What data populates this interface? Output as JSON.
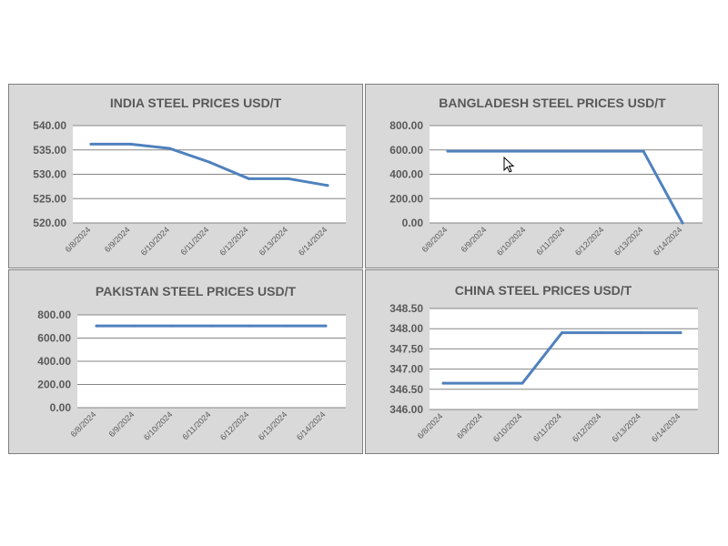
{
  "chart_data": [
    {
      "type": "line",
      "title": "INDIA STEEL PRICES USD/T",
      "categories": [
        "6/8/2024",
        "6/9/2024",
        "6/10/2024",
        "6/11/2024",
        "6/12/2024",
        "6/13/2024",
        "6/14/2024"
      ],
      "series": [
        {
          "values": [
            536.2,
            536.2,
            535.3,
            532.5,
            529.1,
            529.1,
            527.7
          ]
        }
      ],
      "ylim": [
        520,
        540
      ],
      "yticks": [
        "520.00",
        "525.00",
        "530.00",
        "535.00",
        "540.00"
      ],
      "grid": true,
      "line_color": "#4f81bd"
    },
    {
      "type": "line",
      "title": "BANGLADESH STEEL PRICES USD/T",
      "categories": [
        "6/8/2024",
        "6/9/2024",
        "6/10/2024",
        "6/11/2024",
        "6/12/2024",
        "6/13/2024",
        "6/14/2024"
      ],
      "series": [
        {
          "values": [
            590,
            590,
            590,
            590,
            590,
            590,
            0
          ]
        }
      ],
      "ylim": [
        0,
        800
      ],
      "yticks": [
        "0.00",
        "200.00",
        "400.00",
        "600.00",
        "800.00"
      ],
      "grid": true,
      "line_color": "#4f81bd"
    },
    {
      "type": "line",
      "title": "PAKISTAN STEEL PRICES USD/T",
      "categories": [
        "6/8/2024",
        "6/9/2024",
        "6/10/2024",
        "6/11/2024",
        "6/12/2024",
        "6/13/2024",
        "6/14/2024"
      ],
      "series": [
        {
          "values": [
            705,
            705,
            705,
            705,
            705,
            705,
            705
          ]
        }
      ],
      "ylim": [
        0,
        800
      ],
      "yticks": [
        "0.00",
        "200.00",
        "400.00",
        "600.00",
        "800.00"
      ],
      "grid": true,
      "line_color": "#4f81bd"
    },
    {
      "type": "line",
      "title": "CHINA STEEL PRICES USD/T",
      "categories": [
        "6/8/2024",
        "6/9/2024",
        "6/10/2024",
        "6/11/2024",
        "6/12/2024",
        "6/13/2024",
        "6/14/2024"
      ],
      "series": [
        {
          "values": [
            346.65,
            346.65,
            346.65,
            347.9,
            347.9,
            347.9,
            347.9
          ]
        }
      ],
      "ylim": [
        346,
        348.5
      ],
      "yticks": [
        "346.00",
        "346.50",
        "347.00",
        "347.50",
        "348.00",
        "348.50"
      ],
      "grid": true,
      "line_color": "#4f81bd"
    }
  ]
}
